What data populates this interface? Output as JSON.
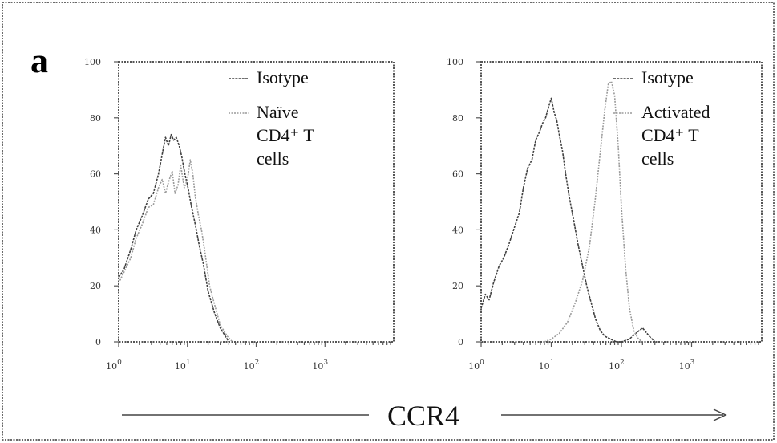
{
  "panel_label": "a",
  "xlabel": "CCR4",
  "colors": {
    "isotype": "#404040",
    "stained": "#9a9a9a"
  },
  "chart_data": [
    {
      "type": "line",
      "x_scale": "log",
      "xlim": [
        1,
        10000
      ],
      "ylim": [
        0,
        100
      ],
      "x_ticks": [
        1,
        10,
        100,
        1000
      ],
      "x_tick_labels": [
        {
          "base": "10",
          "exp": "0"
        },
        {
          "base": "10",
          "exp": "1"
        },
        {
          "base": "10",
          "exp": "2"
        },
        {
          "base": "10",
          "exp": "3"
        }
      ],
      "y_ticks": [
        0,
        20,
        40,
        60,
        80,
        100
      ],
      "y_tick_labels": [
        "0",
        "20",
        "40",
        "60",
        "80",
        "100"
      ],
      "legend": {
        "position": "top-right",
        "entries": [
          {
            "label_lines": [
              "Isotype"
            ],
            "series": "isotype"
          },
          {
            "label_lines": [
              "Naïve",
              "CD4⁺ T",
              "cells"
            ],
            "series": "stained"
          }
        ]
      },
      "series": [
        {
          "key": "isotype",
          "x": [
            1,
            1.2,
            1.5,
            1.8,
            2.2,
            2.7,
            3.2,
            3.8,
            4.3,
            4.8,
            5.3,
            5.8,
            6.3,
            6.9,
            7.6,
            8.3,
            9.2,
            10.2,
            11.5,
            13,
            15,
            17,
            20,
            25,
            30,
            40
          ],
          "y": [
            23,
            26,
            33,
            40,
            45,
            51,
            53,
            60,
            67,
            73,
            70,
            74,
            72,
            73,
            70,
            66,
            60,
            55,
            48,
            42,
            34,
            28,
            18,
            10,
            5,
            0
          ]
        },
        {
          "key": "stained",
          "x": [
            1,
            1.2,
            1.5,
            1.8,
            2.2,
            2.7,
            3.2,
            3.8,
            4.3,
            4.8,
            5.3,
            6,
            6.6,
            7.3,
            8,
            9,
            10,
            11,
            12,
            13,
            14.5,
            16,
            18,
            21,
            25,
            30,
            38,
            45
          ],
          "y": [
            21,
            25,
            30,
            37,
            42,
            48,
            49,
            55,
            58,
            53,
            57,
            61,
            53,
            56,
            63,
            55,
            58,
            65,
            60,
            52,
            45,
            40,
            32,
            20,
            13,
            6,
            2,
            0
          ]
        }
      ]
    },
    {
      "type": "line",
      "x_scale": "log",
      "xlim": [
        1,
        10000
      ],
      "ylim": [
        0,
        100
      ],
      "x_ticks": [
        1,
        10,
        100,
        1000
      ],
      "x_tick_labels": [
        {
          "base": "10",
          "exp": "0"
        },
        {
          "base": "10",
          "exp": "1"
        },
        {
          "base": "10",
          "exp": "2"
        },
        {
          "base": "10",
          "exp": "3"
        }
      ],
      "y_ticks": [
        0,
        20,
        40,
        60,
        80,
        100
      ],
      "y_tick_labels": [
        "0",
        "20",
        "40",
        "60",
        "80",
        "100"
      ],
      "legend": {
        "position": "top-right",
        "entries": [
          {
            "label_lines": [
              "Isotype"
            ],
            "series": "isotype"
          },
          {
            "label_lines": [
              "Activated",
              "CD4⁺ T",
              "cells"
            ],
            "series": "stained"
          }
        ]
      },
      "series": [
        {
          "key": "isotype",
          "x": [
            1,
            1.15,
            1.3,
            1.5,
            1.8,
            2.1,
            2.5,
            3,
            3.5,
            4,
            4.6,
            5.3,
            6,
            6.8,
            7.5,
            8.3,
            9.2,
            10,
            11,
            12,
            13,
            14.5,
            16,
            18,
            21,
            24,
            28,
            32,
            37,
            43,
            50,
            58,
            70,
            85,
            100,
            130,
            160,
            200,
            250,
            300
          ],
          "y": [
            12,
            17,
            15,
            21,
            27,
            30,
            35,
            41,
            46,
            55,
            62,
            65,
            72,
            75,
            78,
            80,
            84,
            87,
            82,
            79,
            74,
            68,
            60,
            52,
            43,
            35,
            27,
            20,
            14,
            8,
            4,
            2,
            1,
            0,
            0,
            1,
            3,
            5,
            2,
            0
          ]
        },
        {
          "key": "stained",
          "x": [
            8,
            10,
            13,
            17,
            22,
            28,
            35,
            42,
            50,
            58,
            65,
            72,
            80,
            90,
            100,
            115,
            130,
            150,
            175,
            200
          ],
          "y": [
            0,
            1,
            3,
            7,
            14,
            22,
            34,
            50,
            68,
            83,
            92,
            93,
            88,
            70,
            48,
            26,
            12,
            4,
            1,
            0
          ]
        }
      ]
    }
  ]
}
